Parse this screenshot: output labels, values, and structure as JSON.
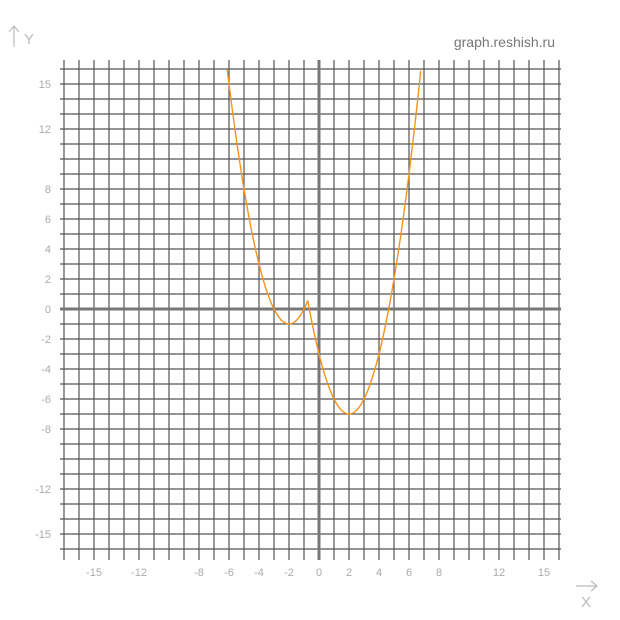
{
  "watermark": "graph.reshish.ru",
  "chart_data": {
    "type": "line",
    "title": "",
    "xlabel": "X",
    "ylabel": "Y",
    "xlim": [
      -17,
      16
    ],
    "ylim": [
      -16,
      16
    ],
    "grid": true,
    "grid_step": 1,
    "x_ticks": [
      -15,
      -12,
      -8,
      -6,
      -4,
      -2,
      0,
      2,
      4,
      6,
      8,
      12,
      15
    ],
    "y_ticks": [
      15,
      12,
      8,
      6,
      4,
      2,
      0,
      -2,
      -4,
      -6,
      -8,
      -12,
      -15
    ],
    "curve_color": "#f7931e",
    "series": [
      {
        "piece": "left",
        "x_range": [
          -6.2,
          -0.75
        ],
        "formula": "(x+2)^2-1",
        "points": [
          [
            -6,
            15
          ],
          [
            -5,
            8
          ],
          [
            -4,
            3
          ],
          [
            -3,
            0
          ],
          [
            -2,
            -1
          ],
          [
            -1,
            0
          ],
          [
            -0.75,
            0.56
          ]
        ]
      },
      {
        "piece": "right",
        "x_range": [
          -0.75,
          6.9
        ],
        "formula": "(x-2)^2-7",
        "points": [
          [
            -0.75,
            0.56
          ],
          [
            0,
            -3
          ],
          [
            1,
            -6
          ],
          [
            2,
            -7
          ],
          [
            3,
            -6
          ],
          [
            4,
            -3
          ],
          [
            5,
            2
          ],
          [
            6,
            9
          ],
          [
            6.9,
            17
          ]
        ]
      }
    ]
  }
}
